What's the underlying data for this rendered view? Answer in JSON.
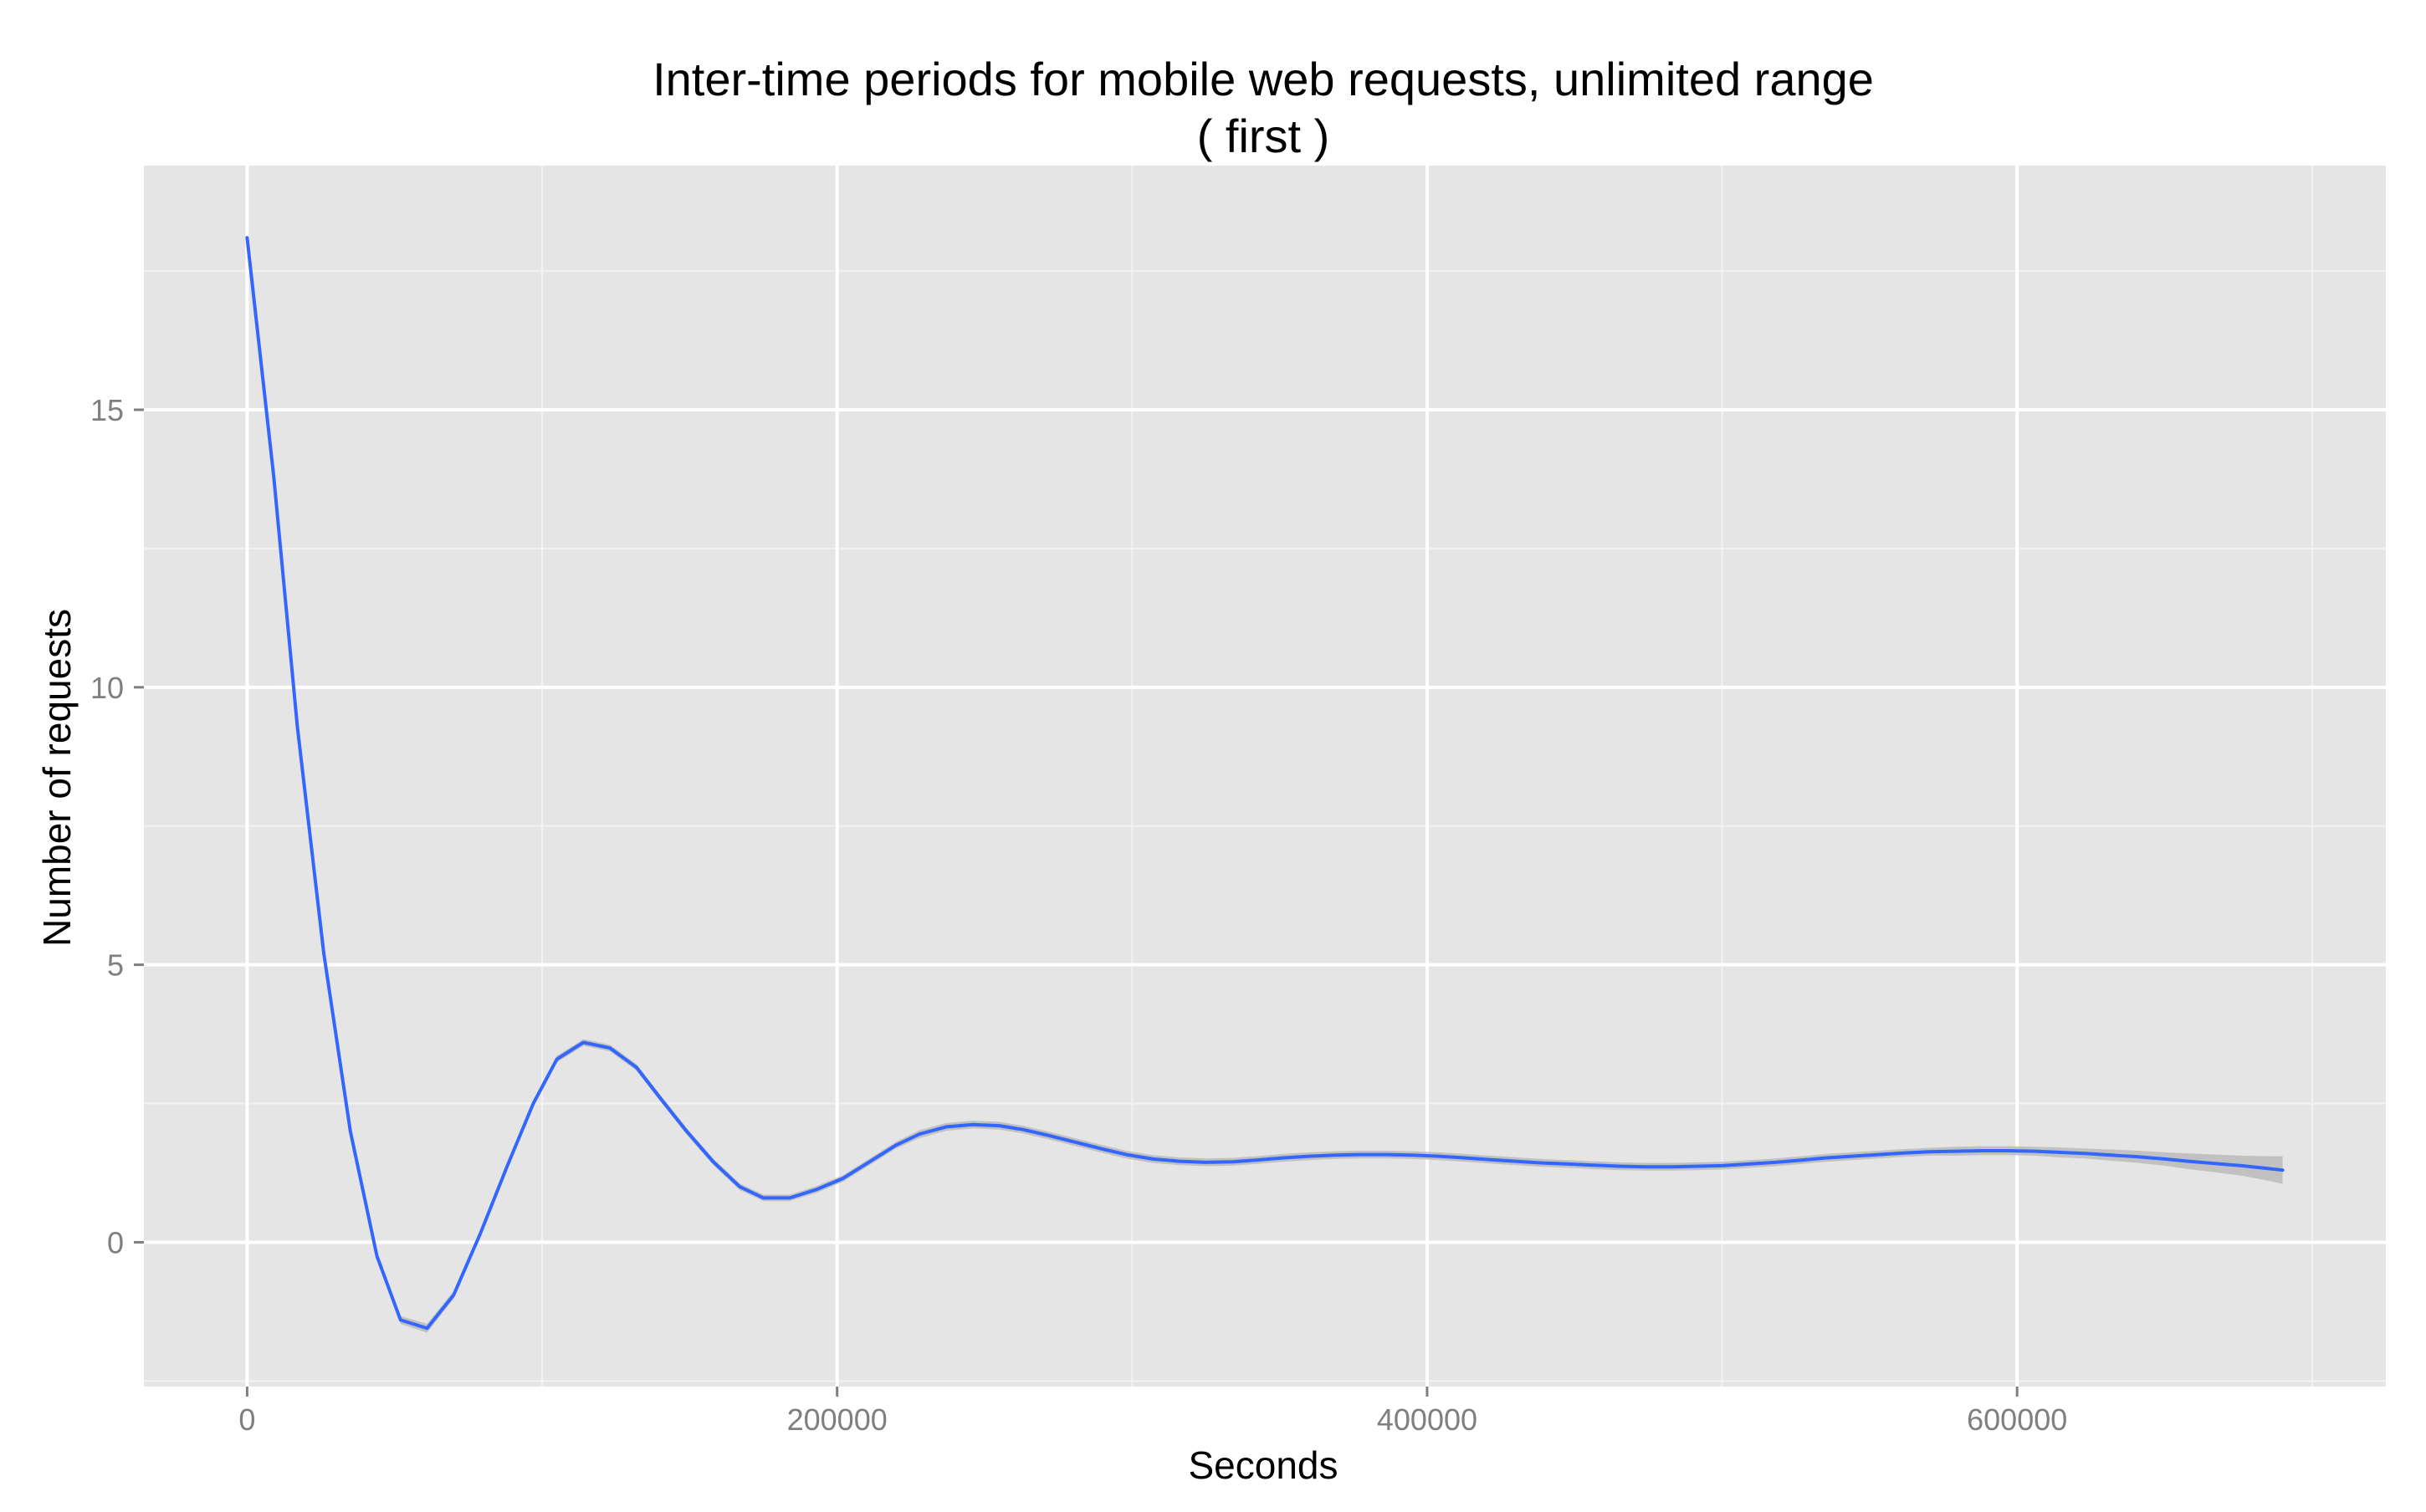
{
  "chart_data": {
    "type": "line",
    "title": "Inter-time periods for mobile web requests, unlimited range",
    "subtitle": "( first )",
    "xlabel": "Seconds",
    "ylabel": "Number of requests",
    "xlim": [
      -35000,
      725000
    ],
    "ylim": [
      -2.6,
      19.4
    ],
    "x_ticks": [
      0,
      200000,
      400000,
      600000
    ],
    "x_tick_labels": [
      "0",
      "200000",
      "400000",
      "600000"
    ],
    "y_ticks": [
      0,
      5,
      10,
      15
    ],
    "y_tick_labels": [
      "0",
      "5",
      "10",
      "15"
    ],
    "grid": true,
    "legend": "none",
    "colors": {
      "panel_background": "#e5e5e5",
      "grid_major": "#ffffff",
      "grid_minor": "#f2f2f2",
      "line": "#3366ff",
      "ribbon": "#bdbdbd"
    },
    "series": [
      {
        "x": [
          0,
          9000,
          17000,
          26000,
          35000,
          44000,
          52000,
          61000,
          70000,
          79000,
          88000,
          97000,
          105000,
          114000,
          123000,
          132000,
          140000,
          149000,
          158000,
          167000,
          175000,
          184000,
          193000,
          202000,
          211000,
          220000,
          228000,
          237000,
          246000,
          255000,
          263000,
          272000,
          281000,
          290000,
          298000,
          307000,
          316000,
          325000,
          334000,
          342000,
          351000,
          360000,
          369000,
          377000,
          386000,
          395000,
          404000,
          413000,
          421000,
          430000,
          439000,
          448000,
          456000,
          465000,
          474000,
          483000,
          492000,
          500000,
          509000,
          518000,
          527000,
          535000,
          544000,
          553000,
          562000,
          570000,
          579000,
          588000,
          597000,
          606000,
          614000,
          623000,
          632000,
          641000,
          650000,
          658000,
          667000,
          676000,
          685000,
          690000
        ],
        "y": [
          18.1,
          13.8,
          9.3,
          5.2,
          2.0,
          -0.25,
          -1.4,
          -1.55,
          -0.95,
          0.15,
          1.35,
          2.5,
          3.3,
          3.6,
          3.5,
          3.15,
          2.6,
          2.0,
          1.45,
          1.0,
          0.8,
          0.8,
          0.95,
          1.15,
          1.45,
          1.75,
          1.95,
          2.08,
          2.12,
          2.1,
          2.03,
          1.92,
          1.8,
          1.68,
          1.58,
          1.5,
          1.46,
          1.44,
          1.45,
          1.48,
          1.52,
          1.55,
          1.57,
          1.58,
          1.58,
          1.57,
          1.55,
          1.52,
          1.49,
          1.46,
          1.43,
          1.41,
          1.39,
          1.37,
          1.36,
          1.36,
          1.37,
          1.38,
          1.41,
          1.44,
          1.48,
          1.52,
          1.55,
          1.58,
          1.61,
          1.63,
          1.64,
          1.65,
          1.65,
          1.64,
          1.62,
          1.6,
          1.57,
          1.54,
          1.5,
          1.46,
          1.42,
          1.38,
          1.33,
          1.3
        ],
        "band": [
          0.0,
          0.02,
          0.03,
          0.04,
          0.05,
          0.06,
          0.07,
          0.08,
          0.07,
          0.06,
          0.06,
          0.06,
          0.06,
          0.06,
          0.06,
          0.06,
          0.06,
          0.06,
          0.06,
          0.06,
          0.06,
          0.06,
          0.06,
          0.06,
          0.06,
          0.06,
          0.07,
          0.07,
          0.07,
          0.07,
          0.07,
          0.07,
          0.07,
          0.07,
          0.07,
          0.07,
          0.07,
          0.07,
          0.07,
          0.07,
          0.07,
          0.07,
          0.07,
          0.07,
          0.07,
          0.07,
          0.07,
          0.07,
          0.07,
          0.07,
          0.07,
          0.07,
          0.07,
          0.07,
          0.07,
          0.07,
          0.07,
          0.07,
          0.07,
          0.07,
          0.07,
          0.07,
          0.07,
          0.07,
          0.07,
          0.07,
          0.08,
          0.08,
          0.08,
          0.08,
          0.09,
          0.09,
          0.1,
          0.11,
          0.12,
          0.14,
          0.16,
          0.18,
          0.22,
          0.25
        ]
      }
    ]
  }
}
